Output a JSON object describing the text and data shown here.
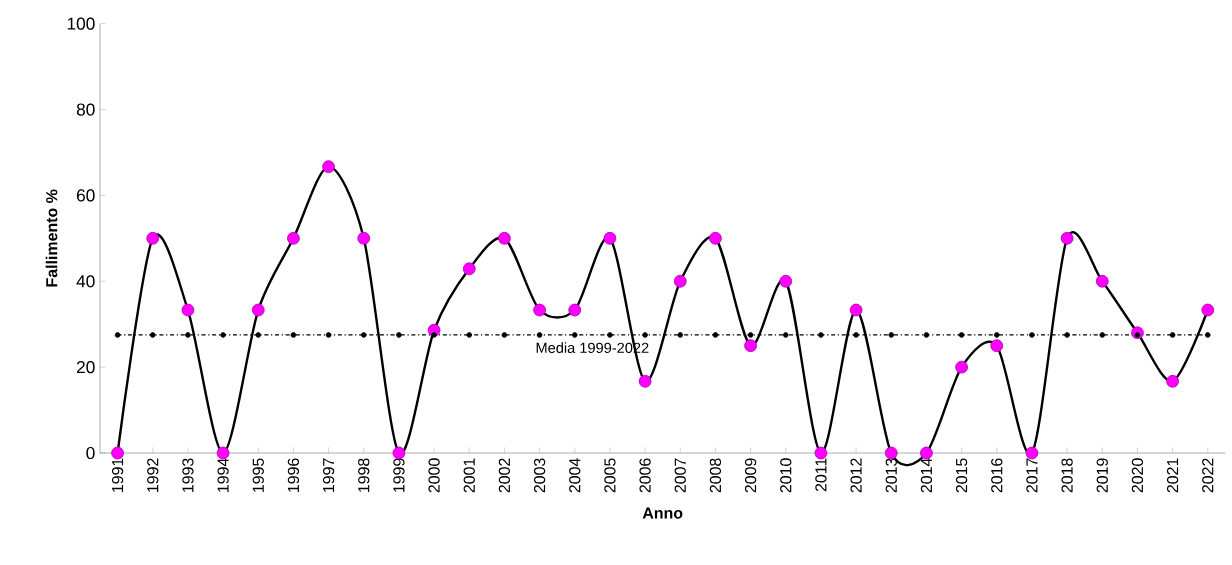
{
  "chart_data": {
    "type": "line",
    "xlabel": "Anno",
    "ylabel": "Fallimento %",
    "categories": [
      "1991",
      "1992",
      "1993",
      "1994",
      "1995",
      "1996",
      "1997",
      "1998",
      "1999",
      "2000",
      "2001",
      "2002",
      "2003",
      "2004",
      "2005",
      "2006",
      "2007",
      "2008",
      "2009",
      "2010",
      "2011",
      "2012",
      "2013",
      "2014",
      "2015",
      "2016",
      "2017",
      "2018",
      "2019",
      "2020",
      "2021",
      "2022"
    ],
    "series": [
      {
        "color": "#ff00ff",
        "marker": "circle",
        "line_style": "solid",
        "values": [
          0,
          50,
          33.3,
          0,
          33.3,
          50,
          66.7,
          50,
          0,
          28.6,
          42.9,
          50,
          33.3,
          33.3,
          50,
          16.7,
          40,
          50,
          25,
          40,
          0,
          33.3,
          0,
          0,
          20,
          25,
          0,
          50,
          40,
          28,
          16.7,
          33.3
        ]
      },
      {
        "name": "Media 1999-2022",
        "color": "#000000",
        "marker": "circle",
        "line_style": "dashed",
        "values": [
          27.5,
          27.5,
          27.5,
          27.5,
          27.5,
          27.5,
          27.5,
          27.5,
          27.5,
          27.5,
          27.5,
          27.5,
          27.5,
          27.5,
          27.5,
          27.5,
          27.5,
          27.5,
          27.5,
          27.5,
          27.5,
          27.5,
          27.5,
          27.5,
          27.5,
          27.5,
          27.5,
          27.5,
          27.5,
          27.5,
          27.5,
          27.5
        ]
      }
    ],
    "ylim": [
      0,
      100
    ],
    "yticks": [
      0,
      20,
      40,
      60,
      80,
      100
    ],
    "grid": false,
    "legend": false
  }
}
